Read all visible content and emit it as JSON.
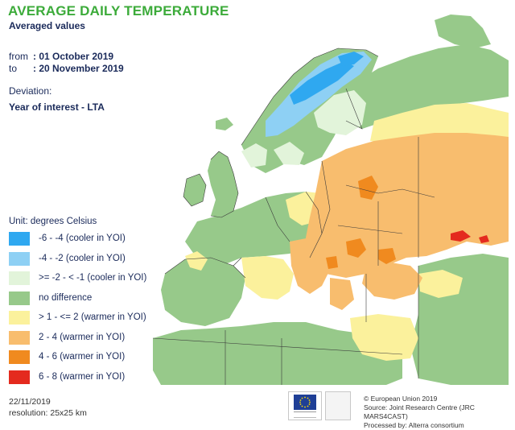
{
  "header": {
    "title": "AVERAGE DAILY TEMPERATURE",
    "subtitle": "Averaged values",
    "from_label": "from",
    "from_value": ": 01 October 2019",
    "to_label": "to",
    "to_value": ": 20 November 2019",
    "deviation_label": "Deviation:",
    "deviation_value": "Year of interest - LTA"
  },
  "legend": {
    "unit": "Unit:  degrees Celsius",
    "items": [
      {
        "label": "-6 - -4 (cooler in YOI)",
        "color": "#2fa8f0"
      },
      {
        "label": "-4 - -2 (cooler in YOI)",
        "color": "#8ed0f4"
      },
      {
        "label": ">= -2 - < -1 (cooler in YOI)",
        "color": "#e2f4da"
      },
      {
        "label": "no difference",
        "color": "#97c98a"
      },
      {
        "label": "> 1 - <= 2 (warmer in YOI)",
        "color": "#fbf19c"
      },
      {
        "label": "2 - 4 (warmer in YOI)",
        "color": "#f8bd6e"
      },
      {
        "label": "4 - 6 (warmer in YOI)",
        "color": "#f08a1f"
      },
      {
        "label": "6 - 8 (warmer in YOI)",
        "color": "#e42a1e"
      }
    ]
  },
  "footer": {
    "date": "22/11/2019",
    "resolution": "resolution:  25x25 km",
    "credit_1": "© European Union 2019",
    "credit_2": "Source: Joint Research Centre (JRC MARS4CAST)",
    "credit_3": "Processed by: Alterra consortium"
  },
  "colors": {
    "sea": "#ffffff",
    "border": "#3a3a3a",
    "title": "#3cab3a"
  }
}
